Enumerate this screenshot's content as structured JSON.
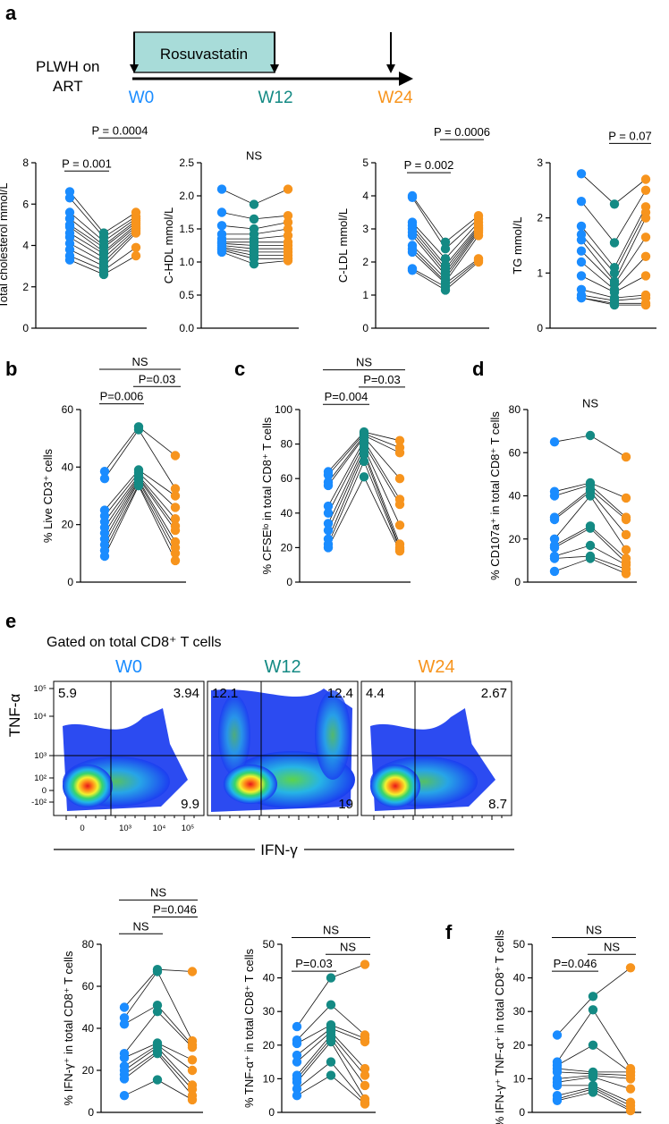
{
  "colors": {
    "w0": "#1a8cff",
    "w12": "#148a84",
    "w24": "#f7941d",
    "bar": "#a8dcd9"
  },
  "panel_labels": [
    "a",
    "b",
    "c",
    "d",
    "e",
    "f"
  ],
  "timeline": {
    "cohort_line1": "PLWH on",
    "cohort_line2": "ART",
    "drug": "Rosuvastatin",
    "timepoints": [
      "W0",
      "W12",
      "W24"
    ]
  },
  "flow": {
    "gate_title": "Gated on total CD8⁺ T cells",
    "y_label": "TNF-α",
    "x_label": "IFN-γ",
    "y_ticks": [
      "10⁵",
      "10⁴",
      "10³",
      "10²",
      "0",
      "-10²"
    ],
    "x_ticks": [
      "0",
      "10³",
      "10⁴",
      "10⁵"
    ],
    "plots": [
      {
        "title": "W0",
        "ul": "5.9",
        "ur": "3.94",
        "lr": "9.9"
      },
      {
        "title": "W12",
        "ul": "12.1",
        "ur": "12.4",
        "lr": "19"
      },
      {
        "title": "W24",
        "ul": "4.4",
        "ur": "2.67",
        "lr": "8.7"
      }
    ]
  },
  "chart_data": [
    {
      "id": "chol",
      "type": "scatter",
      "ylabel": "Total cholesterol mmol/L",
      "ylim": [
        0,
        8
      ],
      "yticks": [
        "0",
        "2",
        "4",
        "6",
        "8"
      ],
      "w0": [
        6.6,
        6.3,
        5.6,
        5.3,
        5.0,
        4.9,
        4.6,
        4.4,
        4.1,
        3.8,
        3.5,
        3.3
      ],
      "w12": [
        4.6,
        4.4,
        4.2,
        4.0,
        3.9,
        3.7,
        3.6,
        3.4,
        3.2,
        3.0,
        2.8,
        2.6
      ],
      "w24": [
        5.6,
        5.4,
        5.3,
        5.2,
        5.1,
        5.0,
        4.9,
        4.8,
        4.7,
        4.6,
        3.9,
        3.5
      ],
      "comparisons": [
        {
          "label": "P = 0.001",
          "pair": "w0-w12",
          "y": 7.6
        },
        {
          "label": "P = 0.0004",
          "pair": "w12-w24",
          "y": 9.2
        }
      ]
    },
    {
      "id": "hdl",
      "type": "scatter",
      "ylabel": "C-HDL mmol/L",
      "ylim": [
        0,
        2.5
      ],
      "yticks": [
        "0.0",
        "0.5",
        "1.0",
        "1.5",
        "2.0",
        "2.5"
      ],
      "w0": [
        2.1,
        1.75,
        1.55,
        1.42,
        1.35,
        1.3,
        1.28,
        1.25,
        1.22,
        1.2,
        1.18,
        1.15
      ],
      "w12": [
        1.87,
        1.65,
        1.5,
        1.42,
        1.35,
        1.3,
        1.25,
        1.2,
        1.15,
        1.1,
        1.05,
        0.97
      ],
      "w24": [
        2.1,
        1.7,
        1.6,
        1.5,
        1.4,
        1.3,
        1.25,
        1.2,
        1.15,
        1.1,
        1.05,
        1.02
      ],
      "comparisons": [
        {
          "label": "NS",
          "pair": "text",
          "y": 2.55
        }
      ]
    },
    {
      "id": "ldl",
      "type": "scatter",
      "ylabel": "C-LDL mmol/L",
      "ylim": [
        0,
        5
      ],
      "yticks": [
        "0",
        "1",
        "2",
        "3",
        "4",
        "5"
      ],
      "w0": [
        4.0,
        3.95,
        3.2,
        3.1,
        3.0,
        2.9,
        2.8,
        2.5,
        2.4,
        2.3,
        1.8,
        1.75
      ],
      "w12": [
        2.6,
        2.4,
        2.1,
        1.9,
        1.8,
        1.7,
        1.6,
        1.5,
        1.4,
        1.35,
        1.25,
        1.15
      ],
      "w24": [
        3.4,
        3.3,
        3.2,
        3.1,
        3.05,
        3.0,
        2.95,
        2.9,
        2.8,
        2.1,
        2.05,
        2.0
      ],
      "comparisons": [
        {
          "label": "P = 0.002",
          "pair": "w0-w12",
          "y": 4.7
        },
        {
          "label": "P = 0.0006",
          "pair": "w12-w24",
          "y": 5.7
        }
      ]
    },
    {
      "id": "tg",
      "type": "scatter",
      "ylabel": "TG mmol/L",
      "ylim": [
        0,
        3
      ],
      "yticks": [
        "0",
        "1",
        "2",
        "3"
      ],
      "w0": [
        2.8,
        2.3,
        1.85,
        1.7,
        1.6,
        1.4,
        1.2,
        0.95,
        0.7,
        0.6,
        0.55,
        0.55
      ],
      "w12": [
        2.25,
        1.55,
        1.1,
        1.0,
        0.85,
        0.8,
        0.7,
        0.65,
        0.55,
        0.5,
        0.45,
        0.42
      ],
      "w24": [
        2.7,
        2.5,
        2.2,
        2.1,
        2.0,
        1.65,
        1.3,
        0.95,
        0.6,
        0.55,
        0.45,
        0.42
      ],
      "comparisons": [
        {
          "label": "P = 0.07",
          "pair": "w12-w24",
          "y": 3.35
        }
      ]
    },
    {
      "id": "cd3",
      "type": "scatter",
      "ylabel": "% Live CD3⁺ cells",
      "ylim": [
        0,
        60
      ],
      "yticks": [
        "0",
        "20",
        "40",
        "60"
      ],
      "w0": [
        38.5,
        36,
        25,
        23,
        21,
        19,
        17,
        15,
        13,
        11,
        9
      ],
      "w12": [
        54,
        53,
        39,
        38,
        37,
        36.5,
        36,
        35.5,
        35,
        34,
        33.5
      ],
      "w24": [
        44,
        32.5,
        30,
        26,
        22,
        19.5,
        18,
        14,
        12,
        10,
        7.5
      ],
      "comparisons": [
        {
          "label": "P=0.006",
          "pair": "w0-w12",
          "y": 62
        },
        {
          "label": "P=0.03",
          "pair": "w12-w24",
          "y": 68
        },
        {
          "label": "NS",
          "pair": "w0-w24",
          "y": 74
        }
      ]
    },
    {
      "id": "cfse",
      "type": "scatter",
      "ylabel": "% CFSEˡᵒ in total CD8⁺ T cells",
      "ylim": [
        0,
        100
      ],
      "yticks": [
        "0",
        "20",
        "40",
        "60",
        "80",
        "100"
      ],
      "w0": [
        64,
        62,
        58,
        56,
        44,
        40,
        34,
        30,
        25,
        22,
        20
      ],
      "w12": [
        87,
        86,
        85,
        84,
        82,
        80,
        78,
        76,
        74,
        70,
        61
      ],
      "w24": [
        82,
        78,
        75,
        60,
        48,
        45,
        33,
        22,
        20,
        19,
        18
      ],
      "comparisons": [
        {
          "label": "P=0.004",
          "pair": "w0-w12",
          "y": 103
        },
        {
          "label": "P=0.03",
          "pair": "w12-w24",
          "y": 113
        },
        {
          "label": "NS",
          "pair": "w0-w24",
          "y": 123
        }
      ]
    },
    {
      "id": "cd107",
      "type": "scatter",
      "ylabel": "% CD107a⁺ in total CD8⁺ T cells",
      "ylim": [
        0,
        80
      ],
      "yticks": [
        "0",
        "20",
        "40",
        "60",
        "80"
      ],
      "w0": [
        65,
        42,
        40,
        30,
        29,
        20,
        17,
        16,
        12,
        11,
        5
      ],
      "w12": [
        68,
        46,
        45,
        43,
        42,
        40,
        26,
        25,
        17,
        12,
        11
      ],
      "w24": [
        58,
        39,
        30,
        29,
        22,
        15,
        11,
        9,
        8,
        6,
        4
      ],
      "comparisons": [
        {
          "label": "NS",
          "pair": "text",
          "y": 81
        }
      ]
    },
    {
      "id": "ifng",
      "type": "scatter",
      "ylabel": "% IFN-γ⁺ in total CD8⁺ T cells",
      "ylim": [
        0,
        80
      ],
      "yticks": [
        "0",
        "20",
        "40",
        "60",
        "80"
      ],
      "w0": [
        50,
        45,
        42,
        28,
        26,
        22,
        20,
        18,
        16,
        8
      ],
      "w12": [
        68,
        67,
        51,
        48,
        33,
        32,
        31,
        29,
        28,
        15.5
      ],
      "w24": [
        67,
        34,
        32,
        31,
        25,
        20,
        13,
        11,
        8,
        6
      ],
      "comparisons": [
        {
          "label": "NS",
          "pair": "w0-w12",
          "y": 85
        },
        {
          "label": "P=0.046",
          "pair": "w12-w24",
          "y": 93
        },
        {
          "label": "NS",
          "pair": "w0-w24",
          "y": 101
        }
      ]
    },
    {
      "id": "tnfa",
      "type": "scatter",
      "ylabel": "% TNF-α⁺ in total CD8⁺ T cells",
      "ylim": [
        0,
        50
      ],
      "yticks": [
        "0",
        "10",
        "20",
        "30",
        "40",
        "50"
      ],
      "w0": [
        25.5,
        21.5,
        20.5,
        17,
        15,
        11,
        10,
        9,
        7,
        5
      ],
      "w12": [
        40,
        32,
        26,
        25,
        24,
        23,
        22,
        21,
        15,
        11
      ],
      "w24": [
        44,
        23,
        22,
        21,
        13,
        11,
        8,
        4,
        3,
        2.5
      ],
      "comparisons": [
        {
          "label": "P=0.03",
          "pair": "w0-w12",
          "y": 42
        },
        {
          "label": "NS",
          "pair": "w12-w24",
          "y": 47
        },
        {
          "label": "NS",
          "pair": "w0-w24",
          "y": 52
        }
      ]
    },
    {
      "id": "dual",
      "type": "scatter",
      "ylabel": "% IFN-γ⁺ TNF-α⁺ in total CD8⁺ T cells",
      "ylim": [
        0,
        50
      ],
      "yticks": [
        "0",
        "10",
        "20",
        "30",
        "40",
        "50"
      ],
      "w0": [
        23,
        15,
        14,
        13,
        12,
        10,
        9,
        8,
        5,
        4,
        3.5
      ],
      "w12": [
        34.5,
        30.5,
        20,
        12,
        11.5,
        11,
        10.5,
        8,
        7.5,
        7,
        6
      ],
      "w24": [
        43,
        13,
        12,
        12,
        11,
        10,
        7,
        3,
        2,
        1,
        0.5
      ],
      "comparisons": [
        {
          "label": "P=0.046",
          "pair": "w0-w12",
          "y": 42
        },
        {
          "label": "NS",
          "pair": "w12-w24",
          "y": 47
        },
        {
          "label": "NS",
          "pair": "w0-w24",
          "y": 52
        }
      ]
    }
  ]
}
